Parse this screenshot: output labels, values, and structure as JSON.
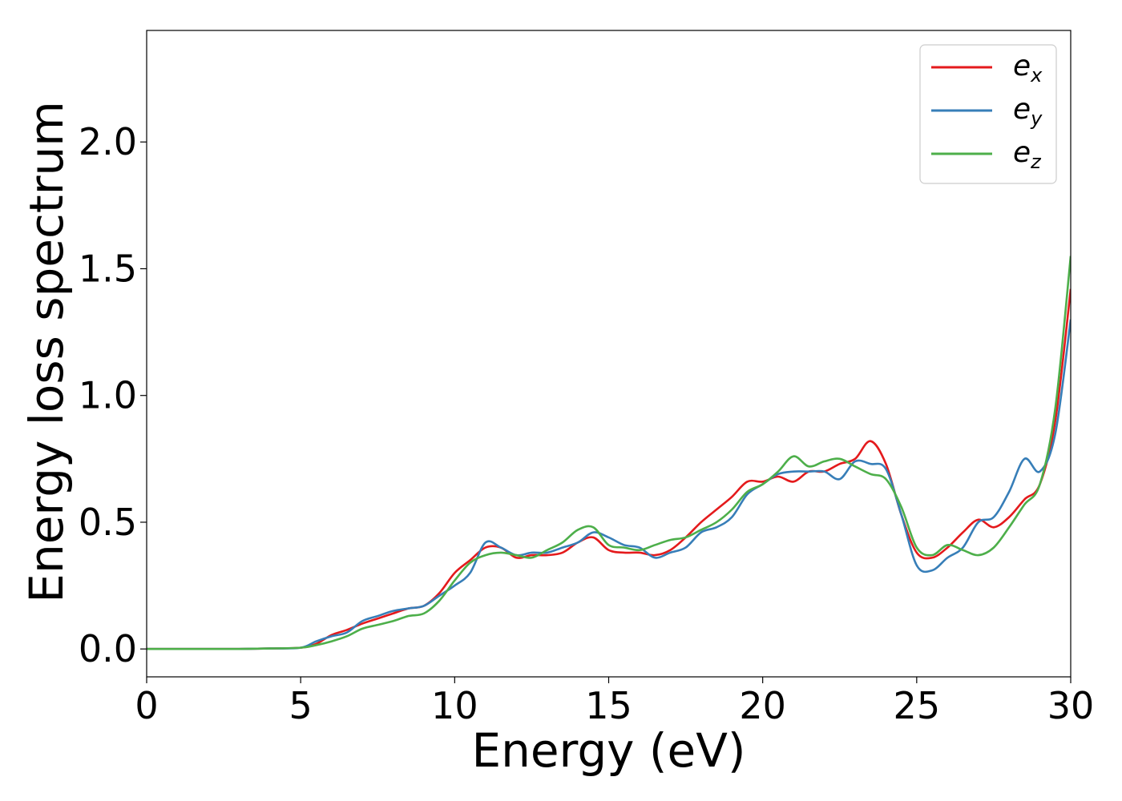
{
  "chart_data": {
    "type": "line",
    "xlabel": "Energy (eV)",
    "ylabel": "Energy loss spectrum",
    "xlim": [
      0,
      30
    ],
    "ylim": [
      -0.11,
      2.44
    ],
    "xticks": [
      0,
      5,
      10,
      15,
      20,
      25,
      30
    ],
    "xtick_labels": [
      "0",
      "5",
      "10",
      "15",
      "20",
      "25",
      "30"
    ],
    "yticks": [
      0.0,
      0.5,
      1.0,
      1.5,
      2.0
    ],
    "ytick_labels": [
      "0.0",
      "0.5",
      "1.0",
      "1.5",
      "2.0"
    ],
    "grid": false,
    "legend_position": "top-right",
    "x": [
      0,
      1,
      2,
      3,
      4,
      5,
      5.5,
      6,
      6.5,
      7,
      7.5,
      8,
      8.5,
      9,
      9.5,
      10,
      10.5,
      11,
      11.5,
      12,
      12.5,
      13,
      13.5,
      14,
      14.5,
      15,
      15.5,
      16,
      16.5,
      17,
      17.5,
      18,
      18.5,
      19,
      19.5,
      20,
      20.5,
      21,
      21.5,
      22,
      22.5,
      23,
      23.5,
      24,
      24.5,
      25,
      25.5,
      26,
      26.5,
      27,
      27.5,
      28,
      28.5,
      29,
      29.5,
      30
    ],
    "series": [
      {
        "name": "x",
        "color": "#e41a1c",
        "values": [
          0.0,
          0.0,
          0.0,
          0.0,
          0.002,
          0.005,
          0.02,
          0.055,
          0.075,
          0.1,
          0.12,
          0.14,
          0.16,
          0.17,
          0.22,
          0.3,
          0.35,
          0.4,
          0.4,
          0.36,
          0.37,
          0.37,
          0.38,
          0.42,
          0.44,
          0.39,
          0.38,
          0.38,
          0.37,
          0.39,
          0.44,
          0.5,
          0.55,
          0.6,
          0.66,
          0.66,
          0.68,
          0.66,
          0.7,
          0.7,
          0.73,
          0.75,
          0.82,
          0.73,
          0.53,
          0.38,
          0.36,
          0.4,
          0.46,
          0.51,
          0.48,
          0.52,
          0.59,
          0.65,
          0.9,
          1.42
        ]
      },
      {
        "name": "y",
        "color": "#377eb8",
        "values": [
          0.0,
          0.0,
          0.0,
          0.0,
          0.002,
          0.005,
          0.03,
          0.05,
          0.065,
          0.11,
          0.13,
          0.15,
          0.16,
          0.17,
          0.21,
          0.25,
          0.3,
          0.42,
          0.4,
          0.37,
          0.38,
          0.38,
          0.4,
          0.42,
          0.46,
          0.44,
          0.41,
          0.4,
          0.36,
          0.38,
          0.4,
          0.46,
          0.48,
          0.52,
          0.61,
          0.65,
          0.69,
          0.7,
          0.7,
          0.7,
          0.67,
          0.74,
          0.73,
          0.71,
          0.53,
          0.33,
          0.31,
          0.36,
          0.4,
          0.5,
          0.52,
          0.62,
          0.75,
          0.7,
          0.85,
          1.3
        ]
      },
      {
        "name": "z",
        "color": "#4daf4a",
        "values": [
          0.0,
          0.0,
          0.0,
          0.0,
          0.002,
          0.005,
          0.015,
          0.03,
          0.05,
          0.08,
          0.095,
          0.11,
          0.13,
          0.14,
          0.19,
          0.27,
          0.34,
          0.37,
          0.38,
          0.37,
          0.36,
          0.39,
          0.42,
          0.47,
          0.48,
          0.41,
          0.4,
          0.39,
          0.41,
          0.43,
          0.44,
          0.47,
          0.5,
          0.55,
          0.62,
          0.65,
          0.7,
          0.76,
          0.72,
          0.74,
          0.75,
          0.72,
          0.69,
          0.67,
          0.56,
          0.4,
          0.37,
          0.41,
          0.39,
          0.37,
          0.4,
          0.48,
          0.57,
          0.65,
          0.95,
          1.55
        ]
      }
    ]
  }
}
